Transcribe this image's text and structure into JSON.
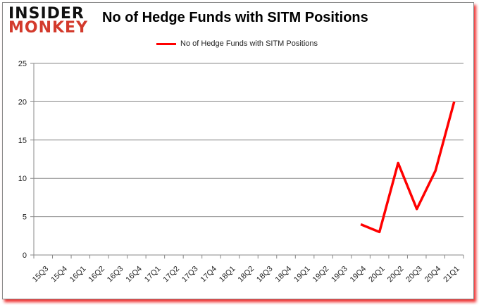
{
  "logo": {
    "line1": "INSIDER",
    "line2": "MONKEY"
  },
  "chart_data": {
    "type": "line",
    "title": "No of Hedge Funds with SITM Positions",
    "xlabel": "",
    "ylabel": "",
    "categories": [
      "15Q3",
      "15Q4",
      "16Q1",
      "16Q2",
      "16Q3",
      "16Q4",
      "17Q1",
      "17Q2",
      "17Q3",
      "17Q4",
      "18Q1",
      "18Q2",
      "18Q3",
      "18Q4",
      "19Q1",
      "19Q2",
      "19Q3",
      "19Q4",
      "20Q1",
      "20Q2",
      "20Q3",
      "20Q4",
      "21Q1"
    ],
    "series": [
      {
        "name": "No of Hedge Funds with SITM Positions",
        "color": "#ff0000",
        "values": [
          null,
          null,
          null,
          null,
          null,
          null,
          null,
          null,
          null,
          null,
          null,
          null,
          null,
          null,
          null,
          null,
          null,
          4,
          3,
          12,
          6,
          11,
          20
        ]
      }
    ],
    "ylim": [
      0,
      25
    ],
    "yticks": [
      0,
      5,
      10,
      15,
      20,
      25
    ],
    "grid": true,
    "legend": "top-center"
  }
}
